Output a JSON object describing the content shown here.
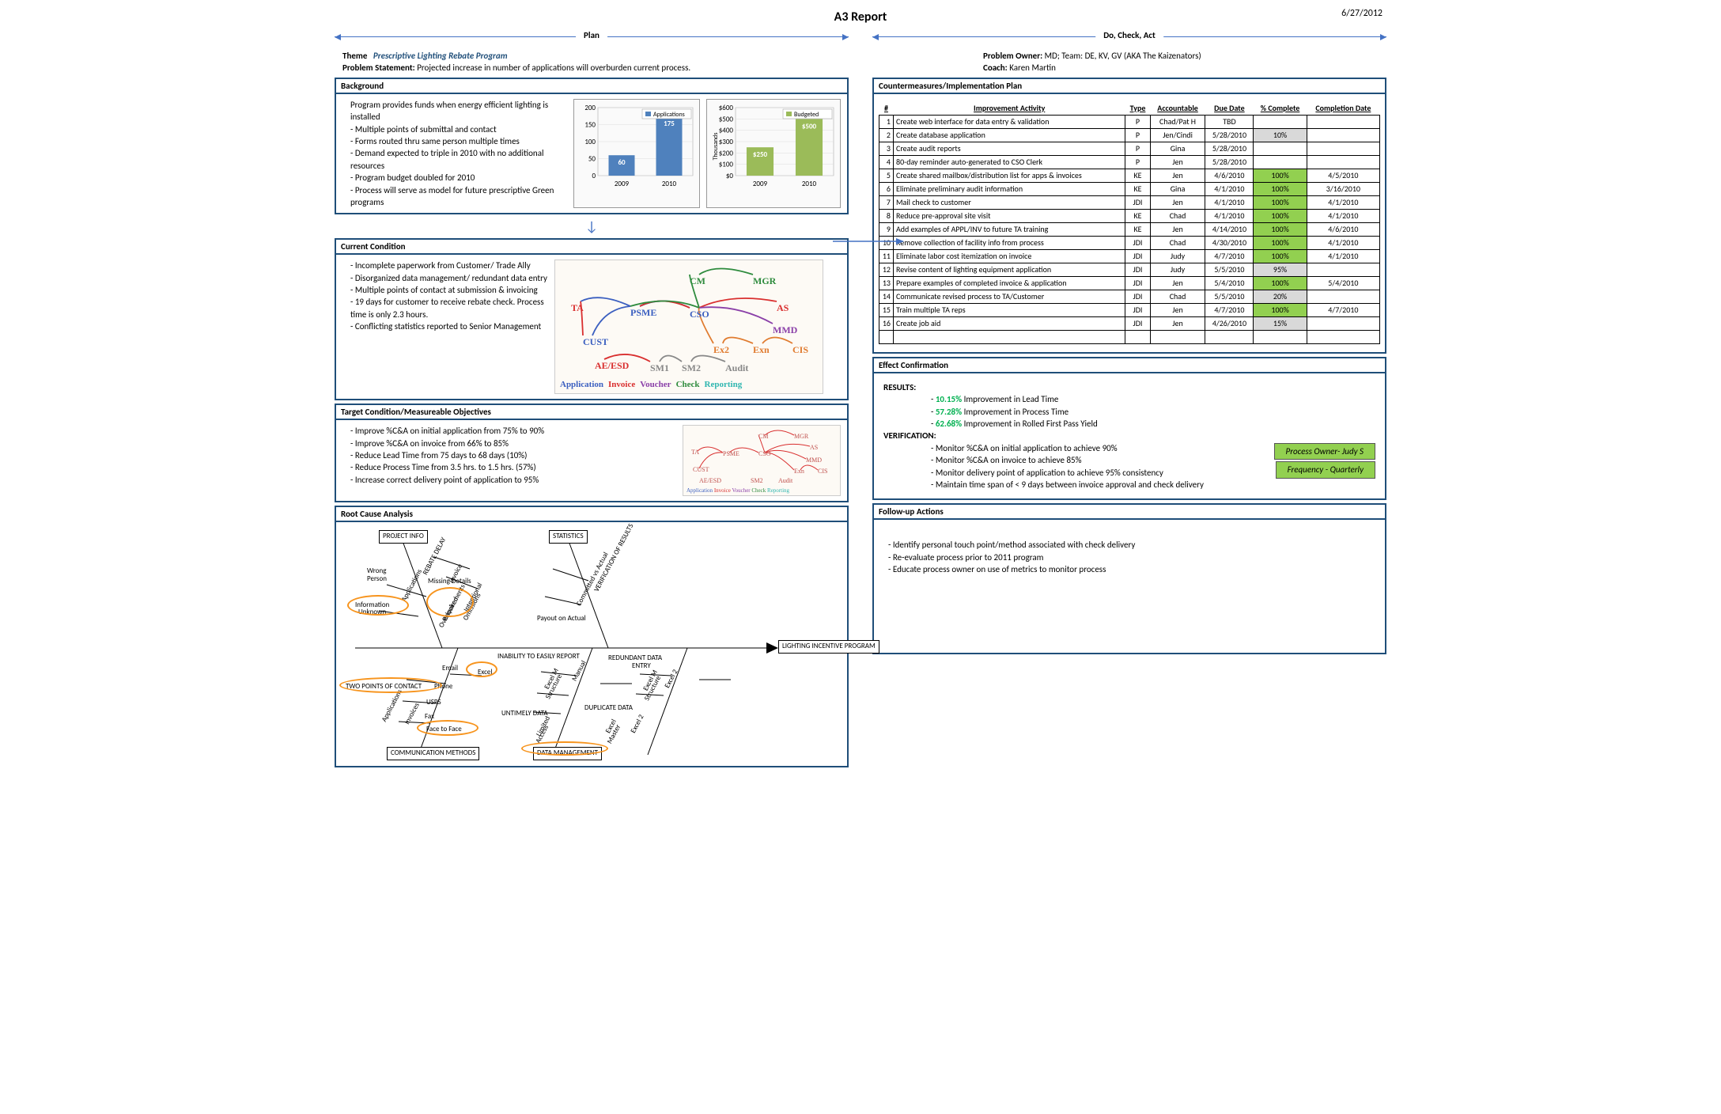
{
  "title": "A3 Report",
  "date": "6/27/2012",
  "left_phase": "Plan",
  "right_phase": "Do, Check, Act",
  "theme_label": "Theme",
  "theme": "Prescriptive Lighting Rebate Program",
  "ps_label": "Problem Statement:",
  "problem_statement": "Projected increase in number of applications will overburden current process.",
  "owner_label": "Problem Owner:",
  "owner": "MD; Team: DE, KV, GV (AKA The Kaizenators)",
  "coach_label": "Coach:",
  "coach": "Karen Martin",
  "background_head": "Background",
  "background_intro": "Program provides funds when energy efficient lighting is installed",
  "background_bullets": [
    "Multiple points of submittal and contact",
    "Forms routed thru same person multiple times",
    "Demand expected to triple in 2010 with no additional resources",
    "Program budget doubled for 2010",
    "Process will serve as model for future prescriptive Green programs"
  ],
  "apps_chart": {
    "title": "Applications",
    "categories": [
      "2009",
      "2010"
    ],
    "values": [
      60,
      175
    ],
    "ylim": [
      0,
      200
    ],
    "ytick_step": 50,
    "bar_color": "#4f81bd",
    "bg": "#f5f5f0"
  },
  "budget_chart": {
    "title": "Budgeted",
    "ylabel": "Thousands",
    "categories": [
      "2009",
      "2010"
    ],
    "values": [
      250,
      500
    ],
    "ylim": [
      0,
      600
    ],
    "ytick_step": 100,
    "bar_color": "#9bbb59",
    "bg": "#f5f5f0"
  },
  "cc_head": "Current Condition",
  "cc_bullets": [
    "Incomplete paperwork from Customer/ Trade Ally",
    "Disorganized data management/ redundant data entry",
    "Multiple points of contact at submission & invoicing",
    "19 days for customer to receive rebate check. Process time is only 2.3 hours.",
    "Conflicting statistics reported to Senior Management"
  ],
  "spaghetti_nodes": [
    "TA",
    "PSME",
    "CSO",
    "CM",
    "MGR",
    "AS",
    "MMD",
    "Exn",
    "CIS",
    "Ex2",
    "Audit",
    "SM2",
    "SM1",
    "AE/ESD",
    "CUST"
  ],
  "spaghetti_legend": [
    "Application",
    "Invoice",
    "Voucher",
    "Check",
    "Reporting"
  ],
  "spaghetti_legend_colors": [
    "#3b5fc0",
    "#d92f2f",
    "#8a3fa8",
    "#2e8b3d",
    "#2fb6b0"
  ],
  "tc_head": "Target Condition/Measureable Objectives",
  "tc_bullets": [
    "Improve %C&A on initial application from 75% to 90%",
    "Improve %C&A on invoice from 66% to 85%",
    "Reduce Lead Time from 75 days to 68 days (10%)",
    "Reduce Process Time from 3.5 hrs. to 1.5 hrs. (57%)",
    "Increase correct delivery point of application to 95%"
  ],
  "rca_head": "Root Cause Analysis",
  "fishbone": {
    "head": "LIGHTING INCENTIVE PROGRAM",
    "top_cats": [
      "PROJECT INFO",
      "STATISTICS"
    ],
    "bot_cats": [
      "COMMUNICATION METHODS",
      "DATA MANAGEMENT"
    ],
    "branches_top": [
      "REBATE DELAY",
      "VERIFICATION OF RESULTS"
    ],
    "sub_top_left": [
      "Wrong Person",
      "Applications",
      "Invoice",
      "Missing Details",
      "Requirements Overlooked",
      "Information Unknown",
      "Intentional Omissions"
    ],
    "sub_top_right": [
      "Committed vs Actual",
      "Payout on Actual"
    ],
    "branches_bot_left": [
      "TWO POINTS OF CONTACT",
      "Email",
      "Phone",
      "USPS",
      "Fax",
      "Face to Face",
      "Applications",
      "Invoices"
    ],
    "branches_bot_mid": [
      "INABILITY TO EASILY REPORT",
      "Excel",
      "Excel M Structure",
      "Manual",
      "Limited Access",
      "UNTIMELY DATA"
    ],
    "branches_bot_right": [
      "REDUNDANT DATA ENTRY",
      "Excel M Structure",
      "Excel 2",
      "DUPLICATE DATA",
      "Excel Master",
      "Excel 2"
    ]
  },
  "cm_head": "Countermeasures/Implementation Plan",
  "plan_cols": [
    "#",
    "Improvement Activity",
    "Type",
    "Accountable",
    "Due Date",
    "% Complete",
    "Completion Date"
  ],
  "plan_rows": [
    {
      "n": 1,
      "act": "Create web interface for data entry & validation",
      "type": "P",
      "acct": "Chad/Pat H",
      "due": "TBD",
      "pct": "",
      "done": ""
    },
    {
      "n": 2,
      "act": "Create database application",
      "type": "P",
      "acct": "Jen/Cindi",
      "due": "5/28/2010",
      "pct": "10%",
      "done": ""
    },
    {
      "n": 3,
      "act": "Create audit reports",
      "type": "P",
      "acct": "Gina",
      "due": "5/28/2010",
      "pct": "",
      "done": ""
    },
    {
      "n": 4,
      "act": "80-day reminder auto-generated to CSO Clerk",
      "type": "P",
      "acct": "Jen",
      "due": "5/28/2010",
      "pct": "",
      "done": ""
    },
    {
      "n": 5,
      "act": "Create shared mailbox/distribution list for apps & invoices",
      "type": "KE",
      "acct": "Jen",
      "due": "4/6/2010",
      "pct": "100%",
      "done": "4/5/2010"
    },
    {
      "n": 6,
      "act": "Eliminate preliminary audit information",
      "type": "KE",
      "acct": "Gina",
      "due": "4/1/2010",
      "pct": "100%",
      "done": "3/16/2010"
    },
    {
      "n": 7,
      "act": "Mail check to customer",
      "type": "JDI",
      "acct": "Jen",
      "due": "4/1/2010",
      "pct": "100%",
      "done": "4/1/2010"
    },
    {
      "n": 8,
      "act": "Reduce pre-approval site visit",
      "type": "KE",
      "acct": "Chad",
      "due": "4/1/2010",
      "pct": "100%",
      "done": "4/1/2010"
    },
    {
      "n": 9,
      "act": "Add examples of APPL/INV to future TA training",
      "type": "KE",
      "acct": "Jen",
      "due": "4/14/2010",
      "pct": "100%",
      "done": "4/6/2010"
    },
    {
      "n": 10,
      "act": "Remove collection of  facility info from process",
      "type": "JDI",
      "acct": "Chad",
      "due": "4/30/2010",
      "pct": "100%",
      "done": "4/1/2010"
    },
    {
      "n": 11,
      "act": "Eliminate labor cost  itemization on invoice",
      "type": "JDI",
      "acct": "Judy",
      "due": "4/7/2010",
      "pct": "100%",
      "done": "4/1/2010"
    },
    {
      "n": 12,
      "act": "Revise content of lighting equipment application",
      "type": "JDI",
      "acct": "Judy",
      "due": "5/5/2010",
      "pct": "95%",
      "done": ""
    },
    {
      "n": 13,
      "act": "Prepare examples of completed invoice & application",
      "type": "JDI",
      "acct": "Jen",
      "due": "5/4/2010",
      "pct": "100%",
      "done": "5/4/2010"
    },
    {
      "n": 14,
      "act": "Communicate revised process to TA/Customer",
      "type": "JDI",
      "acct": "Chad",
      "due": "5/5/2010",
      "pct": "20%",
      "done": ""
    },
    {
      "n": 15,
      "act": "Train multiple TA reps",
      "type": "JDI",
      "acct": "Jen",
      "due": "4/7/2010",
      "pct": "100%",
      "done": "4/7/2010"
    },
    {
      "n": 16,
      "act": "Create job aid",
      "type": "JDI",
      "acct": "Jen",
      "due": "4/26/2010",
      "pct": "15%",
      "done": ""
    }
  ],
  "ec_head": "Effect Confirmation",
  "results_label": "RESULTS:",
  "results": [
    {
      "v": "10.15%",
      "t": "Improvement in Lead Time"
    },
    {
      "v": "57.28%",
      "t": "Improvement in Process Time"
    },
    {
      "v": "62.68%",
      "t": "Improvement in Rolled First Pass Yield"
    }
  ],
  "verif_label": "VERIFICATION:",
  "verif": [
    "Monitor %C&A on initial application to achieve 90%",
    "Monitor %C&A on invoice to achieve 85%",
    "Monitor delivery point of application to achieve 95% consistency",
    "Maintain time span of < 9 days between invoice approval and check delivery"
  ],
  "process_owner": "Process Owner- Judy S",
  "frequency": "Frequency - Quarterly",
  "fu_head": "Follow-up Actions",
  "fu_bullets": [
    "Identify personal touch point/method associated with check delivery",
    "Re-evaluate process prior to 2011 program",
    "Educate process owner on use of metrics to monitor process"
  ]
}
